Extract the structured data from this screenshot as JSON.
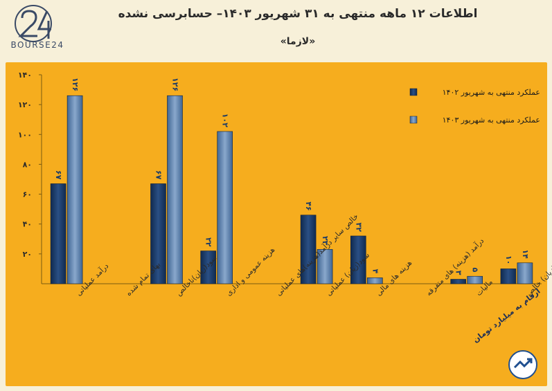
{
  "header": {
    "logo_text": "BOURSE24",
    "title": "اطلاعات ۱۲ ماهه منتهی به ۳۱ شهریور ۱۴۰۳– حسابرسی نشده",
    "subtitle": "«لازما»"
  },
  "footnote": "ارقام به میلیارد تومان",
  "chart_data": {
    "type": "bar",
    "categories": [
      "درآمد عملیاتی",
      "بهای تمام شده",
      "سود(زیان)ناخالص",
      "هزینه عمومی و اداری",
      "خالص سایر درآمد(هزینه)های عملیاتی",
      "سود(زیان) عملیاتی",
      "هزینه های مالی",
      "درآمد (هزینه) های متفرقه",
      "مالیات",
      "سود(زیان) خالص"
    ],
    "series": [
      {
        "name": "عملکرد منتهی به شهریور ۱۴۰۲",
        "color": "#1b3a66",
        "values": [
          67,
          null,
          67,
          22,
          null,
          46,
          32,
          null,
          3,
          10
        ],
        "labels": [
          "۶۷",
          "",
          "۶۷",
          "۲۲",
          "",
          "۴۶",
          "۳۲",
          "",
          "۳",
          "۱۰"
        ]
      },
      {
        "name": "عملکرد منتهی به شهریور ۱۴۰۳",
        "color": "#5b7fa8",
        "values": [
          126,
          null,
          126,
          102,
          null,
          23,
          4,
          null,
          5,
          14
        ],
        "labels": [
          "۱۲۶",
          "",
          "۱۲۶",
          "۱۰۲",
          "",
          "۲۳",
          "۴",
          "",
          "۵",
          "۱۴"
        ]
      }
    ],
    "yticks": [
      20,
      40,
      60,
      80,
      100,
      120,
      140
    ],
    "ytick_labels": [
      "۲۰",
      "۴۰",
      "۶۰",
      "۸۰",
      "۱۰۰",
      "۱۲۰",
      "۱۴۰"
    ],
    "ylim": [
      0,
      140
    ],
    "grid": false,
    "legend_position": "top-right"
  }
}
